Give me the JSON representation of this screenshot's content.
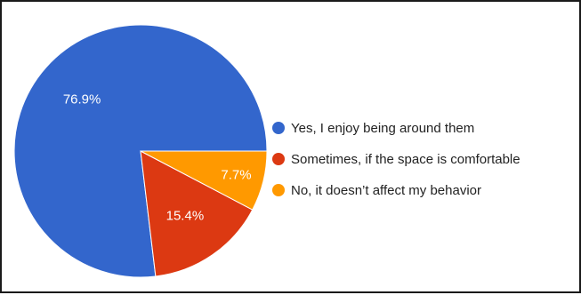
{
  "chart_data": {
    "type": "pie",
    "categories": [
      "Yes, I enjoy being around them",
      "Sometimes, if the space is comfortable",
      "No, it doesn’t affect my behavior"
    ],
    "values": [
      76.9,
      15.4,
      7.7
    ],
    "labels": [
      "76.9%",
      "15.4%",
      "7.7%"
    ],
    "colors": [
      "#3366cc",
      "#dc3912",
      "#ff9900"
    ],
    "legend_position": "right",
    "title": ""
  }
}
